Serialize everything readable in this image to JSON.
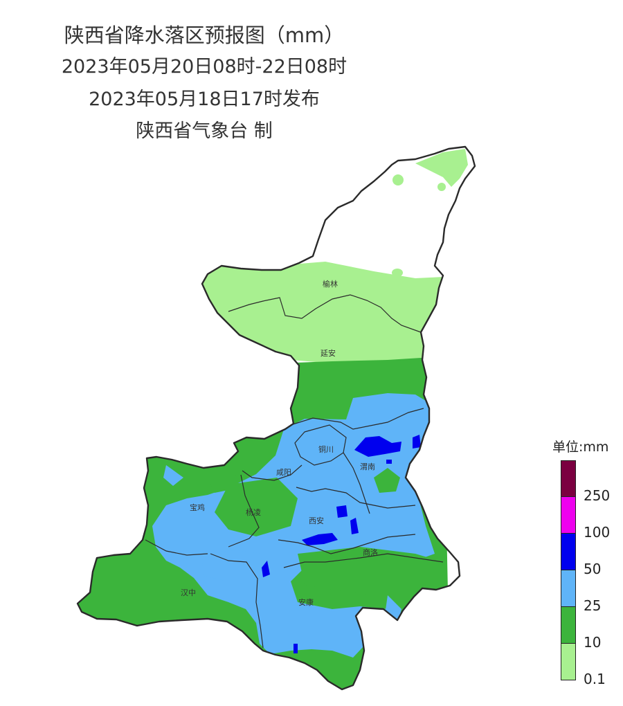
{
  "title": {
    "main": "陕西省降水落区预报图（mm）",
    "period": "2023年05月20日08时-22日08时",
    "issued": "2023年05月18日17时发布",
    "issuer": "陕西省气象台 制"
  },
  "cities": [
    {
      "name": "榆林"
    },
    {
      "name": "延安"
    },
    {
      "name": "铜川"
    },
    {
      "name": "渭南"
    },
    {
      "name": "咸阳"
    },
    {
      "name": "宝鸡"
    },
    {
      "name": "杨凌"
    },
    {
      "name": "西安"
    },
    {
      "name": "商洛"
    },
    {
      "name": "汉中"
    },
    {
      "name": "安康"
    }
  ],
  "legend": {
    "title": "单位:mm",
    "classes": [
      {
        "color": "#7b0040",
        "label": ""
      },
      {
        "color": "#ee00ee",
        "label": "250"
      },
      {
        "color": "#0000ee",
        "label": "100"
      },
      {
        "color": "#5fb4f8",
        "label": "50"
      },
      {
        "color": "#3cb43c",
        "label": "25"
      },
      {
        "color": "#a8f090",
        "label": "10"
      },
      {
        "color": "",
        "label": "0.1"
      }
    ]
  },
  "colors": {
    "light_rain": "#a8f090",
    "moderate_rain": "#3cb43c",
    "heavy_rain": "#5fb4f8",
    "rainstorm": "#0000ee",
    "boundary": "#2a2a2a"
  }
}
